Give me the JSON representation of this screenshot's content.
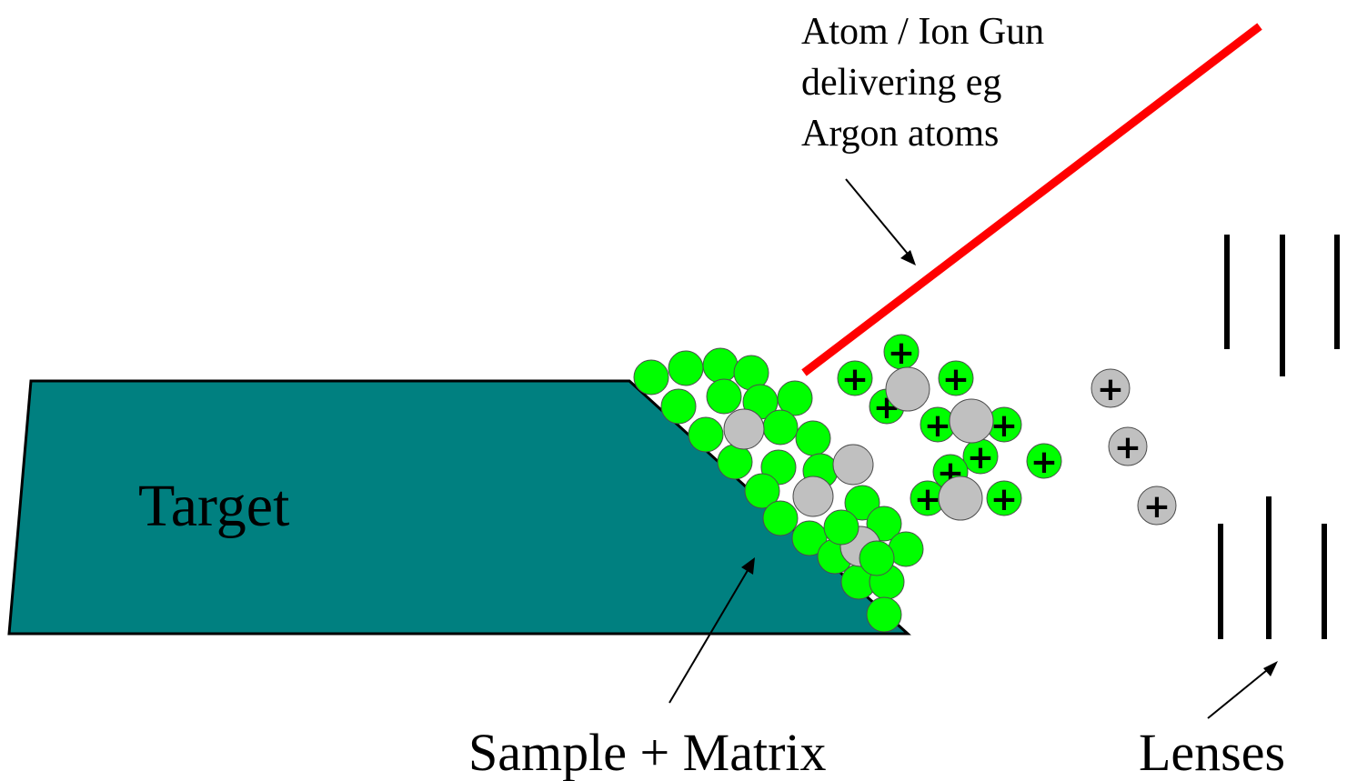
{
  "labels": {
    "target": "Target",
    "gun_line1": "Atom / Ion Gun",
    "gun_line2": "delivering eg",
    "gun_line3": "Argon atoms",
    "sample": "Sample + Matrix",
    "lenses": "Lenses"
  },
  "colors": {
    "target_fill": "#008080",
    "matrix_green": "#00ff00",
    "analyte_gray": "#c0c0c0",
    "beam_red": "#ff0000",
    "ink": "#000000"
  },
  "symbols": {
    "positive_charge": "+"
  },
  "icons": {
    "matrix_particle": "green-circle",
    "analyte_particle": "gray-circle",
    "ion": "plus-in-circle",
    "beam": "red-line",
    "lens": "vertical-bar"
  }
}
